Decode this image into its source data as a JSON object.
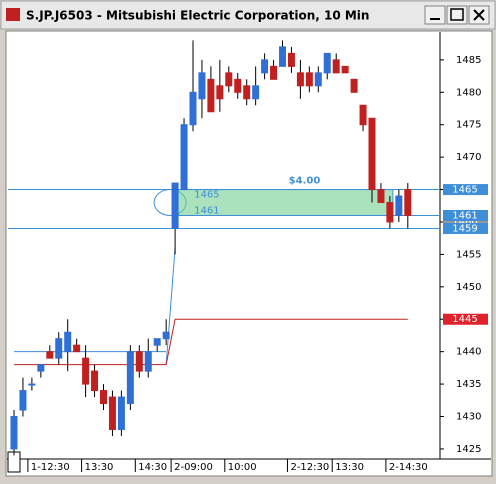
{
  "chart_data": {
    "type": "candlestick",
    "title": "S.JP.J6503 - Mitsubishi Electric Corporation, 10 Min",
    "up_color": "#2f6fd6",
    "down_color": "#c0201f",
    "open": [
      1425,
      1431,
      1435,
      1437,
      1440,
      1439,
      1440,
      1441,
      1439,
      1437,
      1434,
      1433,
      1428,
      1432,
      1440,
      1437,
      1441,
      1442,
      1459,
      1465,
      1475,
      1479,
      1482,
      1481,
      1483,
      1482,
      1481,
      1479,
      1483,
      1484,
      1484,
      1486,
      1483,
      1483,
      1481,
      1483,
      1485,
      1484,
      1482,
      1478,
      1476,
      1465,
      1463,
      1461,
      1465
    ],
    "high": [
      1431,
      1436,
      1436,
      1438,
      1441,
      1443,
      1445,
      1442,
      1441,
      1438,
      1435,
      1434,
      1434,
      1441,
      1441,
      1442,
      1442,
      1445,
      1466,
      1476,
      1488,
      1485,
      1484,
      1485,
      1484,
      1483,
      1482,
      1484,
      1486,
      1485,
      1488,
      1487,
      1485,
      1484,
      1484,
      1486,
      1486,
      1484,
      1482,
      1478,
      1476,
      1466,
      1464,
      1465,
      1466
    ],
    "low": [
      1424,
      1430,
      1434,
      1436,
      1439,
      1438,
      1437,
      1440,
      1433,
      1433,
      1431,
      1427,
      1427,
      1431,
      1436,
      1436,
      1440,
      1441,
      1455,
      1465,
      1474,
      1476,
      1477,
      1477,
      1480,
      1479,
      1478,
      1478,
      1482,
      1482,
      1484,
      1483,
      1479,
      1480,
      1480,
      1482,
      1483,
      1483,
      1480,
      1474,
      1463,
      1463,
      1459,
      1460,
      1459
    ],
    "close": [
      1430,
      1434,
      1435,
      1438,
      1439,
      1442,
      1443,
      1440,
      1435,
      1434,
      1432,
      1428,
      1433,
      1440,
      1437,
      1440,
      1442,
      1443,
      1466,
      1475,
      1480,
      1483,
      1477,
      1479,
      1481,
      1480,
      1479,
      1481,
      1485,
      1482,
      1487,
      1484,
      1481,
      1481,
      1483,
      1486,
      1483,
      1483,
      1480,
      1475,
      1465,
      1463,
      1460,
      1464,
      1461
    ],
    "ylim": [
      1423.6,
      1489.3
    ],
    "yticks": [
      1425,
      1430,
      1435,
      1440,
      1445,
      1450,
      1455,
      1460,
      1465,
      1470,
      1475,
      1480,
      1485
    ],
    "xticks": [
      {
        "value": 2,
        "label": "1-12:30"
      },
      {
        "value": 8,
        "label": "13:30"
      },
      {
        "value": 14,
        "label": "14:30"
      },
      {
        "value": 18,
        "label": "2-09:00"
      },
      {
        "value": 24,
        "label": "10:00"
      },
      {
        "value": 31,
        "label": "2-12:30"
      },
      {
        "value": 36,
        "label": "13:30"
      },
      {
        "value": 42,
        "label": "2-14:30"
      }
    ],
    "overlay_lines": [
      {
        "color": "#3f8fd8",
        "points": [
          [
            0,
            1440
          ],
          [
            17,
            1440
          ]
        ]
      },
      {
        "color": "#3f8fd8",
        "points": [
          [
            17,
            1438
          ],
          [
            18,
            1456
          ]
        ]
      },
      {
        "color": "#c0201f",
        "points": [
          [
            0,
            1438
          ],
          [
            17,
            1438
          ],
          [
            18,
            1445
          ],
          [
            44,
            1445
          ]
        ]
      }
    ],
    "range_box": {
      "high": 1465,
      "low": 1461,
      "from": 18,
      "to": 42,
      "label": "$4.00"
    },
    "price_lines": [
      {
        "value": 1465,
        "color": "#3f8fd8"
      },
      {
        "value": 1459,
        "color": "#3f8fd8"
      }
    ],
    "price_tags": [
      {
        "value": 1465,
        "color": "#3f8fd8"
      },
      {
        "value": 1460,
        "color": "#9a9a9a"
      },
      {
        "value": 1461,
        "color": "#3f8fd8"
      },
      {
        "value": 1459,
        "color": "#3f8fd8"
      },
      {
        "value": 1445,
        "color": "#e0202a"
      }
    ]
  }
}
